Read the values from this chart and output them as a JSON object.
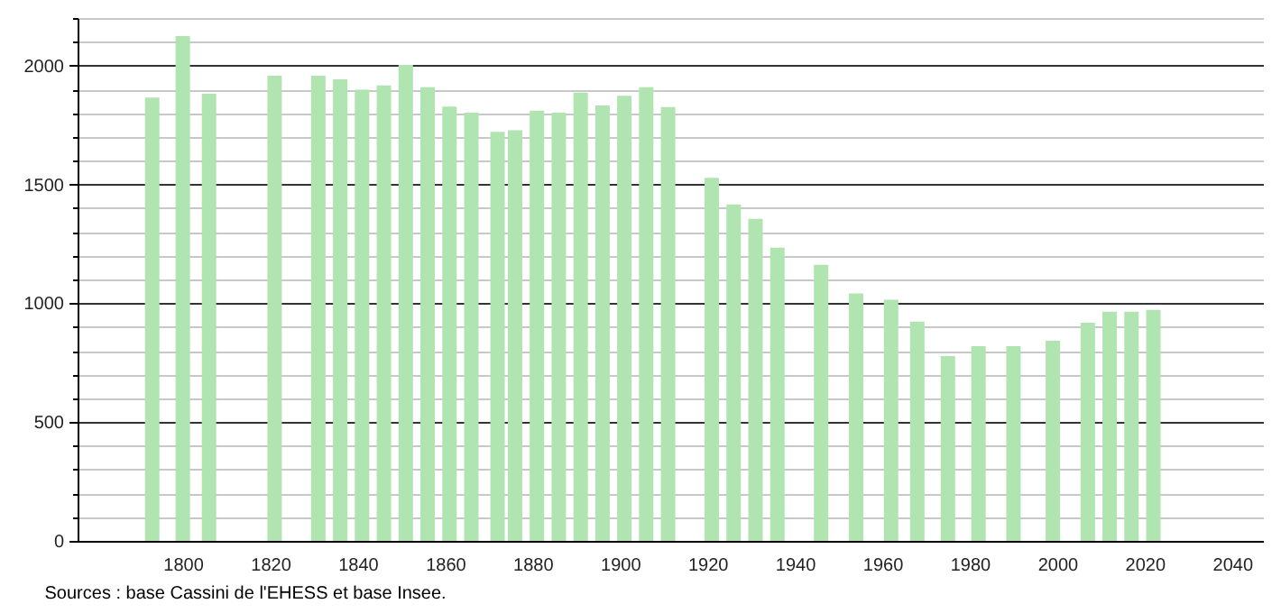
{
  "chart_data": {
    "type": "bar",
    "x": [
      1793,
      1800,
      1806,
      1821,
      1831,
      1836,
      1841,
      1846,
      1851,
      1856,
      1861,
      1866,
      1872,
      1876,
      1881,
      1886,
      1891,
      1896,
      1901,
      1906,
      1911,
      1921,
      1926,
      1931,
      1936,
      1946,
      1954,
      1962,
      1968,
      1975,
      1982,
      1990,
      1999,
      2007,
      2012,
      2017,
      2022
    ],
    "values": [
      1865,
      2124,
      1881,
      1957,
      1957,
      1942,
      1898,
      1916,
      2003,
      1909,
      1827,
      1802,
      1721,
      1728,
      1810,
      1802,
      1886,
      1832,
      1873,
      1909,
      1825,
      1528,
      1416,
      1355,
      1234,
      1162,
      1041,
      1015,
      923,
      778,
      819,
      819,
      842,
      918,
      964,
      964,
      972
    ],
    "color": "#b0e4b0",
    "xlim": [
      1778,
      2045
    ],
    "xticks": [
      1800,
      1820,
      1840,
      1860,
      1880,
      1900,
      1920,
      1940,
      1960,
      1980,
      2000,
      2020,
      2040
    ],
    "ylim": [
      0,
      2200
    ],
    "yticks": [
      0,
      {
        "value": 100,
        "label": null
      },
      {
        "value": 200,
        "label": null
      },
      {
        "value": 300,
        "label": null
      },
      {
        "value": 400,
        "label": null
      },
      500,
      {
        "value": 600,
        "label": null
      },
      {
        "value": 700,
        "label": null
      },
      {
        "value": 800,
        "label": null
      },
      {
        "value": 900,
        "label": null
      },
      1000,
      {
        "value": 1100,
        "label": null
      },
      {
        "value": 1200,
        "label": null
      },
      {
        "value": 1300,
        "label": null
      },
      {
        "value": 1400,
        "label": null
      },
      1500,
      {
        "value": 1600,
        "label": null
      },
      {
        "value": 1700,
        "label": null
      },
      {
        "value": 1800,
        "label": null
      },
      {
        "value": 1900,
        "label": null
      },
      2000,
      {
        "value": 2100,
        "label": null
      },
      {
        "value": 2200,
        "label": null
      }
    ],
    "grid": "y",
    "annotations": [
      "Sources : base Cassini de l'EHESS et base Insee."
    ]
  }
}
